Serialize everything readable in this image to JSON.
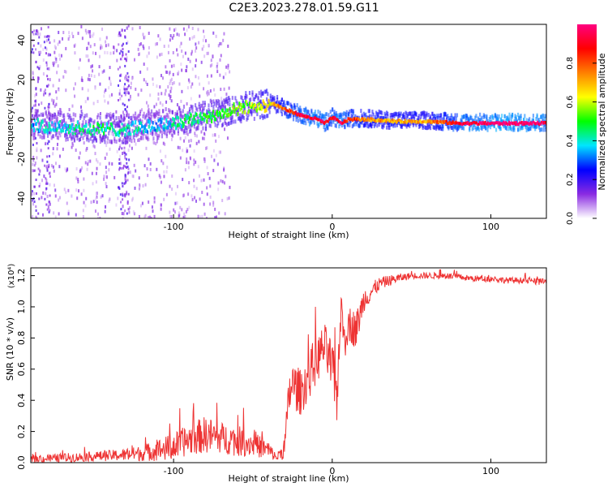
{
  "chart_data": [
    {
      "type": "heatmap",
      "title": "C2E3.2023.278.01.59.G11",
      "xlabel": "Height of straight line (km)",
      "ylabel": "Frequency (Hz)",
      "xlim": [
        -190,
        135
      ],
      "ylim": [
        -50,
        48
      ],
      "xticks": [
        -100,
        0,
        100
      ],
      "yticks": [
        40,
        20,
        0,
        -20,
        -40
      ],
      "colorbar": {
        "label": "Normalized spectral amplitude",
        "range": [
          0,
          1
        ],
        "ticks": [
          "0.0",
          "0.2",
          "0.4",
          "0.6",
          "0.8"
        ],
        "colormap": [
          "#ffffff",
          "#8a2be2",
          "#0000ff",
          "#00e5ff",
          "#00ff00",
          "#ffff00",
          "#ff8000",
          "#ff0000",
          "#ff0080"
        ]
      },
      "ridge": {
        "description": "frequency of dominant spectral ridge vs height",
        "x": [
          -190,
          -170,
          -150,
          -130,
          -110,
          -90,
          -70,
          -55,
          -45,
          -38,
          -30,
          -20,
          -10,
          -5,
          0,
          5,
          10,
          20,
          40,
          60,
          80,
          100,
          120,
          135
        ],
        "y": [
          -3,
          -4,
          -5,
          -5,
          -3,
          0,
          3,
          6,
          7,
          8,
          5,
          2,
          0,
          -2,
          1,
          -2,
          0,
          0,
          -1,
          -1,
          -2,
          -2,
          -2,
          -2
        ],
        "amplitude": [
          0.35,
          0.4,
          0.45,
          0.4,
          0.35,
          0.45,
          0.5,
          0.55,
          0.6,
          0.65,
          0.8,
          0.9,
          0.95,
          0.9,
          0.9,
          0.95,
          0.85,
          0.75,
          0.7,
          0.7,
          0.9,
          1.0,
          1.0,
          0.95
        ]
      }
    },
    {
      "type": "line",
      "title": "",
      "xlabel": "Height of straight line (km)",
      "ylabel": "SNR (10 * v/v)",
      "y_multiplier": "(x10⁴)",
      "xlim": [
        -190,
        135
      ],
      "ylim": [
        0,
        1.25
      ],
      "xticks": [
        -100,
        0,
        100
      ],
      "yticks": [
        "0.0",
        "0.2",
        "0.4",
        "0.6",
        "0.8",
        "1.0",
        "1.2"
      ],
      "series": [
        {
          "name": "SNR",
          "color": "#ee3333",
          "x": [
            -190,
            -170,
            -150,
            -130,
            -120,
            -110,
            -100,
            -90,
            -80,
            -70,
            -60,
            -50,
            -40,
            -35,
            -30,
            -27,
            -25,
            -20,
            -15,
            -10,
            -5,
            0,
            3,
            5,
            8,
            10,
            15,
            20,
            25,
            30,
            40,
            50,
            60,
            70,
            80,
            90,
            100,
            110,
            120,
            130,
            135
          ],
          "y": [
            0.02,
            0.03,
            0.04,
            0.05,
            0.06,
            0.08,
            0.1,
            0.15,
            0.18,
            0.16,
            0.14,
            0.12,
            0.08,
            0.03,
            0.1,
            0.45,
            0.5,
            0.45,
            0.55,
            0.65,
            0.75,
            0.6,
            0.4,
            0.95,
            0.8,
            0.9,
            0.85,
            1.05,
            1.1,
            1.15,
            1.18,
            1.2,
            1.2,
            1.2,
            1.19,
            1.18,
            1.18,
            1.17,
            1.17,
            1.16,
            1.16
          ],
          "noise": [
            0.02,
            0.03,
            0.03,
            0.04,
            0.05,
            0.07,
            0.09,
            0.1,
            0.12,
            0.1,
            0.1,
            0.08,
            0.06,
            0.02,
            0.08,
            0.15,
            0.15,
            0.15,
            0.15,
            0.15,
            0.15,
            0.18,
            0.15,
            0.15,
            0.15,
            0.12,
            0.12,
            0.08,
            0.06,
            0.04,
            0.03,
            0.02,
            0.02,
            0.02,
            0.02,
            0.02,
            0.02,
            0.02,
            0.02,
            0.02,
            0.02
          ]
        }
      ]
    }
  ]
}
